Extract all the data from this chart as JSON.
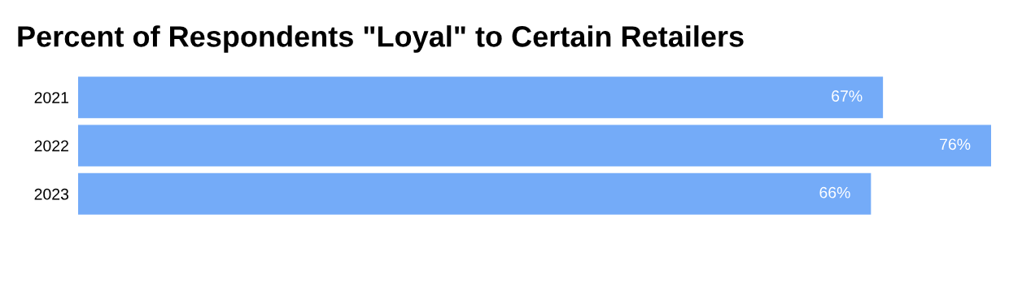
{
  "chart_data": {
    "type": "bar",
    "orientation": "horizontal",
    "title": "Percent of Respondents \"Loyal\" to Certain Retailers",
    "categories": [
      "2021",
      "2022",
      "2023"
    ],
    "values": [
      67,
      76,
      66
    ],
    "color": "#74abf8",
    "data_labels": true,
    "value_labels": [
      "67%",
      "76%",
      "66%"
    ]
  }
}
